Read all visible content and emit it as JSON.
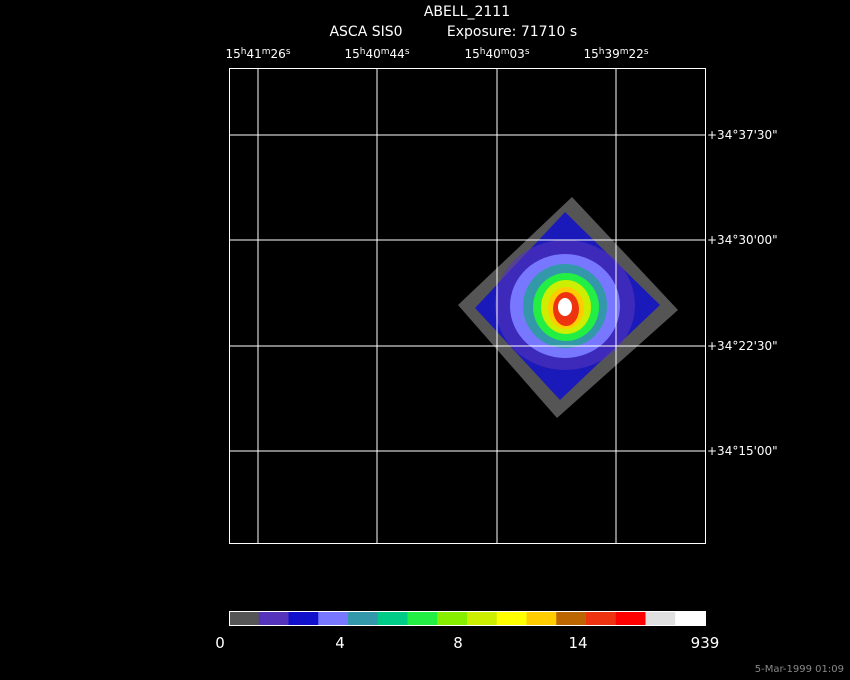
{
  "header": {
    "title": "ABELL_2111",
    "instrument": "ASCA SIS0",
    "exposure": "Exposure: 71710 s"
  },
  "ra_units": [
    "h",
    "m",
    "s"
  ],
  "ra_labels": [
    [
      "15",
      "41",
      "26"
    ],
    [
      "15",
      "40",
      "44"
    ],
    [
      "15",
      "40",
      "03"
    ],
    [
      "15",
      "39",
      "22"
    ]
  ],
  "dec_labels": [
    "+34°37'30\"",
    "+34°30'00\"",
    "+34°22'30\"",
    "+34°15'00\""
  ],
  "colorbar": {
    "colors": [
      "#555555",
      "#5533bb",
      "#1111cc",
      "#7777ff",
      "#3399aa",
      "#00cc88",
      "#22ee44",
      "#88ee00",
      "#ccee00",
      "#ffff00",
      "#ffcc00",
      "#bb6600",
      "#ee3311",
      "#ff0000",
      "#e0e0e0",
      "#ffffff"
    ],
    "labels": [
      "0",
      "4",
      "8",
      "14",
      "939"
    ]
  },
  "footer": {
    "date": "5-Mar-1999 01:09"
  }
}
